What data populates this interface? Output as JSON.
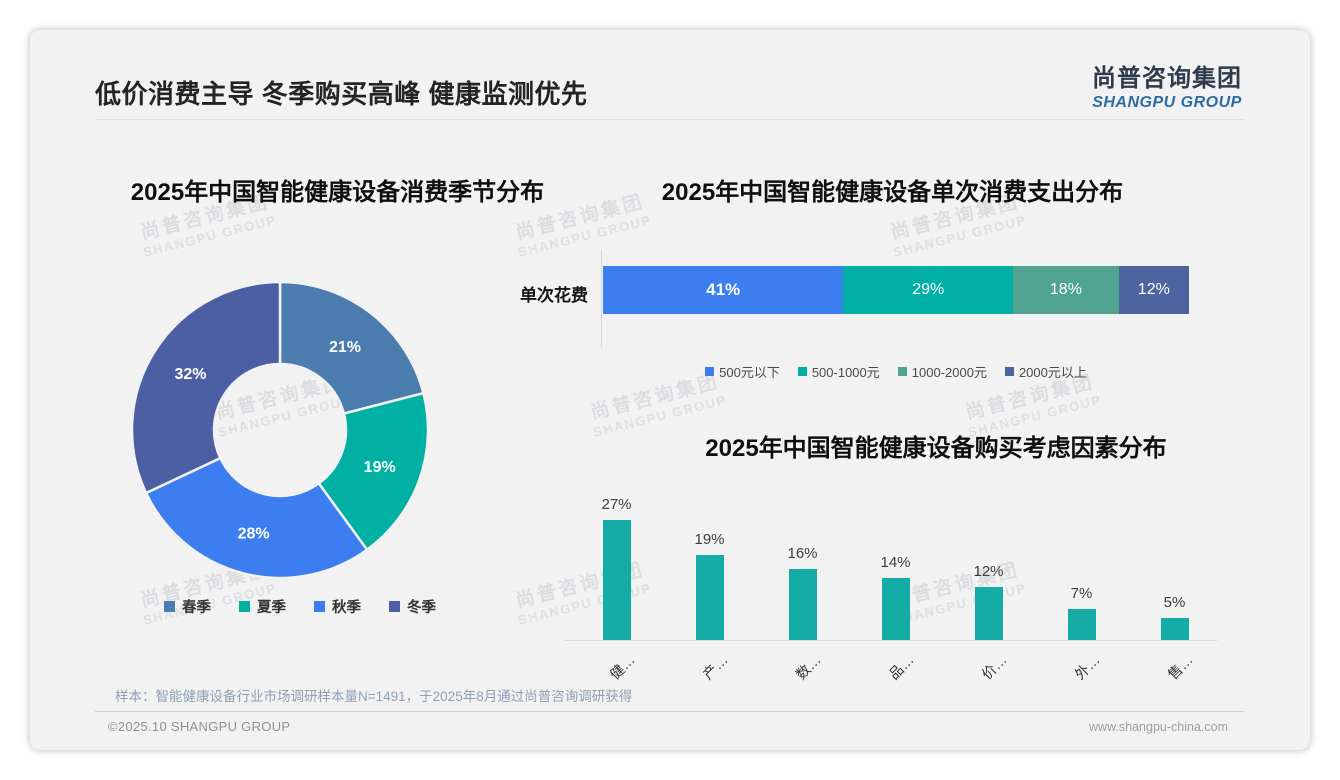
{
  "header": {
    "title": "低价消费主导 冬季购买高峰 健康监测优先",
    "logo_cn": "尚普咨询集团",
    "logo_en": "SHANGPU GROUP"
  },
  "watermark": {
    "line1": "尚普咨询集团",
    "line2": "SHANGPU GROUP"
  },
  "chart_data": [
    {
      "id": "season-donut",
      "type": "pie",
      "donut": true,
      "title": "2025年中国智能健康设备消费季节分布",
      "labels": [
        "春季",
        "夏季",
        "秋季",
        "冬季"
      ],
      "values": [
        21,
        19,
        28,
        32
      ],
      "unit": "%",
      "colors": [
        "#4b7cae",
        "#00b1a3",
        "#3c7df0",
        "#4d5fa3"
      ],
      "legend_position": "bottom",
      "label_style": "white-bold-inside"
    },
    {
      "id": "spend-stacked-bar",
      "type": "bar",
      "variant": "horizontal-stacked",
      "title": "2025年中国智能健康设备单次消费支出分布",
      "category": "单次花费",
      "series": [
        {
          "name": "500元以下",
          "value": 41,
          "color": "#3c7df0"
        },
        {
          "name": "500-1000元",
          "value": 29,
          "color": "#00afa5"
        },
        {
          "name": "1000-2000元",
          "value": 18,
          "color": "#4fa390"
        },
        {
          "name": "2000元以上",
          "value": 12,
          "color": "#4e64a1"
        }
      ],
      "unit": "%",
      "xlim": [
        0,
        100
      ],
      "legend_position": "bottom"
    },
    {
      "id": "factor-bar",
      "type": "bar",
      "variant": "vertical",
      "title": "2025年中国智能健康设备购买考虑因素分布",
      "categories": [
        "健…",
        "产…",
        "数…",
        "品…",
        "价…",
        "外…",
        "售…"
      ],
      "values": [
        27,
        19,
        16,
        14,
        12,
        7,
        5
      ],
      "unit": "%",
      "bar_color": "#16aca6",
      "xlabel_rotation": 45,
      "grid": false
    }
  ],
  "footnote": "样本：智能健康设备行业市场调研样本量N=1491，于2025年8月通过尚普咨询调研获得",
  "footer": {
    "left": "©2025.10 SHANGPU GROUP",
    "right": "www.shangpu-china.com"
  }
}
